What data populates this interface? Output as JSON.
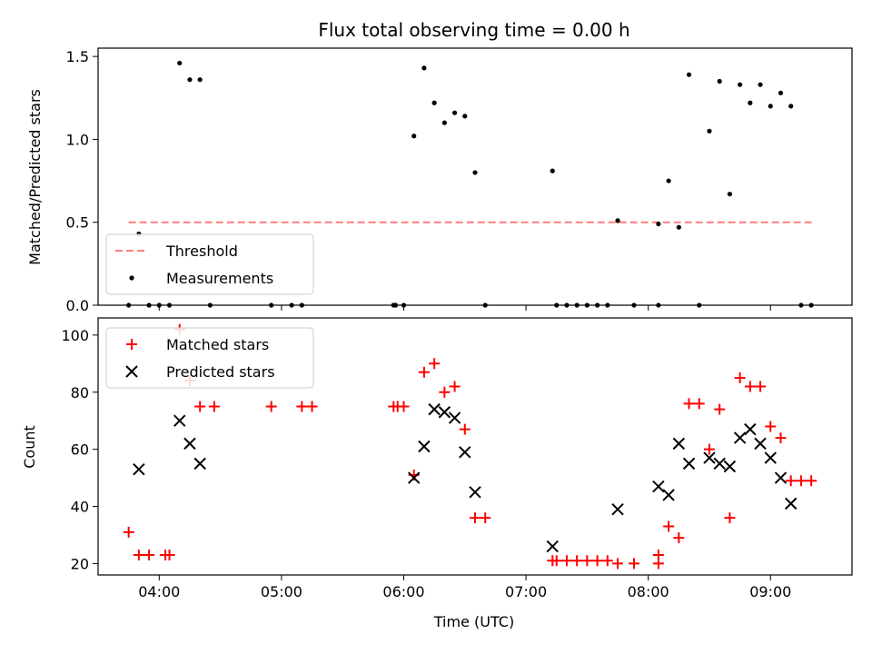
{
  "chart_data": [
    {
      "type": "scatter",
      "title": "Flux total observing time = 0.00 h",
      "ylabel": "Matched/Predicted stars",
      "xlabel": "",
      "xlim": [
        "03:30",
        "09:40"
      ],
      "ylim": [
        0,
        1.55
      ],
      "yticks": [
        0,
        0.5,
        1.0,
        1.5
      ],
      "ytick_labels": [
        "0.0",
        "0.5",
        "1.0",
        "1.5"
      ],
      "legend_position": "lower-left",
      "series": [
        {
          "name": "Threshold",
          "kind": "dashed-line",
          "color": "#ff7f7f",
          "points": [
            [
              "03:45",
              0.5
            ],
            [
              "09:22",
              0.5
            ]
          ]
        },
        {
          "name": "Measurements",
          "kind": "dot",
          "color": "#000000",
          "points": [
            [
              "03:45",
              0
            ],
            [
              "03:50",
              0.43
            ],
            [
              "03:55",
              0
            ],
            [
              "04:00",
              0
            ],
            [
              "04:05",
              0
            ],
            [
              "04:10",
              1.46
            ],
            [
              "04:15",
              1.36
            ],
            [
              "04:20",
              1.36
            ],
            [
              "04:25",
              0
            ],
            [
              "04:55",
              0
            ],
            [
              "05:05",
              0
            ],
            [
              "05:10",
              0
            ],
            [
              "05:55",
              0
            ],
            [
              "05:56",
              0
            ],
            [
              "06:00",
              0
            ],
            [
              "06:05",
              1.02
            ],
            [
              "06:10",
              1.43
            ],
            [
              "06:15",
              1.22
            ],
            [
              "06:20",
              1.1
            ],
            [
              "06:25",
              1.16
            ],
            [
              "06:30",
              1.14
            ],
            [
              "06:35",
              0.8
            ],
            [
              "06:40",
              0
            ],
            [
              "07:13",
              0.81
            ],
            [
              "07:15",
              0
            ],
            [
              "07:20",
              0
            ],
            [
              "07:25",
              0
            ],
            [
              "07:30",
              0
            ],
            [
              "07:35",
              0
            ],
            [
              "07:40",
              0
            ],
            [
              "07:45",
              0.51
            ],
            [
              "07:53",
              0
            ],
            [
              "08:05",
              0.49
            ],
            [
              "08:05",
              0
            ],
            [
              "08:10",
              0.75
            ],
            [
              "08:15",
              0.47
            ],
            [
              "08:20",
              1.39
            ],
            [
              "08:25",
              0
            ],
            [
              "08:30",
              1.05
            ],
            [
              "08:35",
              1.35
            ],
            [
              "08:40",
              0.67
            ],
            [
              "08:45",
              1.33
            ],
            [
              "08:50",
              1.22
            ],
            [
              "08:55",
              1.33
            ],
            [
              "09:00",
              1.2
            ],
            [
              "09:05",
              1.28
            ],
            [
              "09:10",
              1.2
            ],
            [
              "09:15",
              0
            ],
            [
              "09:20",
              0
            ]
          ]
        }
      ]
    },
    {
      "type": "scatter",
      "title": "",
      "ylabel": "Count",
      "xlabel": "Time (UTC)",
      "xlim": [
        "03:30",
        "09:40"
      ],
      "ylim": [
        16,
        106
      ],
      "yticks": [
        20,
        40,
        60,
        80,
        100
      ],
      "ytick_labels": [
        "20",
        "40",
        "60",
        "80",
        "100"
      ],
      "xticks": [
        "04:00",
        "05:00",
        "06:00",
        "07:00",
        "08:00",
        "09:00"
      ],
      "xtick_labels": [
        "04:00",
        "05:00",
        "06:00",
        "07:00",
        "08:00",
        "09:00"
      ],
      "legend_position": "upper-left",
      "series": [
        {
          "name": "Matched stars",
          "kind": "plus",
          "color": "#ff0000",
          "points": [
            [
              "03:45",
              31
            ],
            [
              "03:50",
              23
            ],
            [
              "03:55",
              23
            ],
            [
              "04:03",
              23
            ],
            [
              "04:05",
              23
            ],
            [
              "04:10",
              102
            ],
            [
              "04:15",
              84
            ],
            [
              "04:20",
              75
            ],
            [
              "04:27",
              75
            ],
            [
              "04:55",
              75
            ],
            [
              "05:10",
              75
            ],
            [
              "05:15",
              75
            ],
            [
              "05:55",
              75
            ],
            [
              "05:57",
              75
            ],
            [
              "06:00",
              75
            ],
            [
              "06:05",
              51
            ],
            [
              "06:10",
              87
            ],
            [
              "06:15",
              90
            ],
            [
              "06:20",
              80
            ],
            [
              "06:25",
              82
            ],
            [
              "06:30",
              67
            ],
            [
              "06:35",
              36
            ],
            [
              "06:40",
              36
            ],
            [
              "07:13",
              21
            ],
            [
              "07:15",
              21
            ],
            [
              "07:20",
              21
            ],
            [
              "07:25",
              21
            ],
            [
              "07:30",
              21
            ],
            [
              "07:35",
              21
            ],
            [
              "07:40",
              21
            ],
            [
              "07:45",
              20
            ],
            [
              "07:53",
              20
            ],
            [
              "08:05",
              23
            ],
            [
              "08:05",
              20
            ],
            [
              "08:10",
              33
            ],
            [
              "08:15",
              29
            ],
            [
              "08:20",
              76
            ],
            [
              "08:25",
              76
            ],
            [
              "08:30",
              60
            ],
            [
              "08:35",
              74
            ],
            [
              "08:40",
              36
            ],
            [
              "08:45",
              85
            ],
            [
              "08:50",
              82
            ],
            [
              "08:55",
              82
            ],
            [
              "09:00",
              68
            ],
            [
              "09:05",
              64
            ],
            [
              "09:10",
              49
            ],
            [
              "09:15",
              49
            ],
            [
              "09:20",
              49
            ]
          ]
        },
        {
          "name": "Predicted stars",
          "kind": "x",
          "color": "#000000",
          "points": [
            [
              "03:50",
              53
            ],
            [
              "04:10",
              70
            ],
            [
              "04:15",
              62
            ],
            [
              "04:20",
              55
            ],
            [
              "06:05",
              50
            ],
            [
              "06:10",
              61
            ],
            [
              "06:15",
              74
            ],
            [
              "06:20",
              73
            ],
            [
              "06:25",
              71
            ],
            [
              "06:30",
              59
            ],
            [
              "06:35",
              45
            ],
            [
              "07:13",
              26
            ],
            [
              "07:45",
              39
            ],
            [
              "08:05",
              47
            ],
            [
              "08:10",
              44
            ],
            [
              "08:15",
              62
            ],
            [
              "08:20",
              55
            ],
            [
              "08:30",
              57
            ],
            [
              "08:35",
              55
            ],
            [
              "08:40",
              54
            ],
            [
              "08:45",
              64
            ],
            [
              "08:50",
              67
            ],
            [
              "08:55",
              62
            ],
            [
              "09:00",
              57
            ],
            [
              "09:05",
              50
            ],
            [
              "09:10",
              41
            ]
          ]
        }
      ]
    }
  ]
}
